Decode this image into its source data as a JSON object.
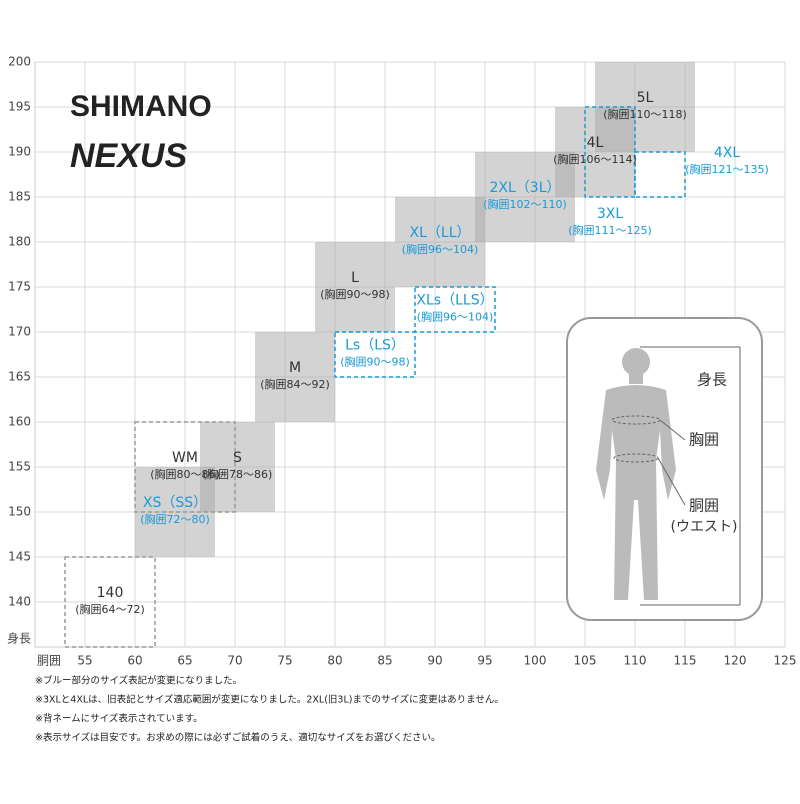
{
  "logos": [
    "SHIMANO",
    "NEXUS"
  ],
  "chart_data": {
    "type": "size-chart",
    "x_label": "胴囲",
    "y_label": "身長",
    "xlim": [
      50,
      125
    ],
    "ylim": [
      135,
      200
    ],
    "xticks": [
      55,
      60,
      65,
      70,
      75,
      80,
      85,
      90,
      95,
      100,
      105,
      110,
      115,
      120,
      125
    ],
    "yticks": [
      140,
      145,
      150,
      155,
      160,
      165,
      170,
      175,
      180,
      185,
      190,
      195,
      200
    ],
    "grid": true,
    "boxes": [
      {
        "label": "140",
        "sublabel": "(胸囲64～72)",
        "x": [
          53,
          62
        ],
        "y": [
          135,
          145
        ],
        "style": "dashed",
        "color": "#333333"
      },
      {
        "label": "XS（SS）",
        "sublabel": "(胸囲72～80)",
        "x": [
          60,
          68
        ],
        "y": [
          145,
          155
        ],
        "style": "filled",
        "color": "#1a9ad6"
      },
      {
        "label": "S",
        "sublabel": "(胸囲78～86)",
        "x": [
          66.5,
          74
        ],
        "y": [
          150,
          160
        ],
        "style": "filled",
        "color": "#333333"
      },
      {
        "label": "WM",
        "sublabel": "(胸囲80～86)",
        "x": [
          60,
          70
        ],
        "y": [
          150,
          160
        ],
        "style": "dashed",
        "color": "#333333"
      },
      {
        "label": "M",
        "sublabel": "(胸囲84～92)",
        "x": [
          72,
          80
        ],
        "y": [
          160,
          170
        ],
        "style": "filled",
        "color": "#333333"
      },
      {
        "label": "L",
        "sublabel": "(胸囲90～98)",
        "x": [
          78,
          86
        ],
        "y": [
          170,
          180
        ],
        "style": "filled",
        "color": "#333333"
      },
      {
        "label": "Ls（LS）",
        "sublabel": "(胸囲90～98)",
        "x": [
          80,
          88
        ],
        "y": [
          165,
          170
        ],
        "style": "dashed",
        "color": "#1a9ad6"
      },
      {
        "label": "XL（LL）",
        "sublabel": "(胸囲96～104)",
        "x": [
          86,
          95
        ],
        "y": [
          175,
          185
        ],
        "style": "filled",
        "color": "#1a9ad6"
      },
      {
        "label": "XLs（LLS）",
        "sublabel": "(胸囲96～104)",
        "x": [
          88,
          96
        ],
        "y": [
          170,
          175
        ],
        "style": "dashed",
        "color": "#1a9ad6"
      },
      {
        "label": "2XL（3L）",
        "sublabel": "(胸囲102～110)",
        "x": [
          94,
          104
        ],
        "y": [
          180,
          190
        ],
        "style": "filled",
        "color": "#1a9ad6"
      },
      {
        "label": "4L",
        "sublabel": "(胸囲106～114)",
        "x": [
          102,
          110
        ],
        "y": [
          185,
          195
        ],
        "style": "filled",
        "color": "#333333"
      },
      {
        "label": "5L",
        "sublabel": "(胸囲110～118)",
        "x": [
          106,
          116
        ],
        "y": [
          190,
          200
        ],
        "style": "filled",
        "color": "#333333"
      },
      {
        "label": "3XL",
        "sublabel": "(胸囲111～125)",
        "x": [
          105,
          110
        ],
        "y": [
          185,
          195
        ],
        "style": "dashed",
        "color": "#1a9ad6",
        "label_side": "below"
      },
      {
        "label": "4XL",
        "sublabel": "(胸囲121～135)",
        "x": [
          110,
          115
        ],
        "y": [
          185,
          190
        ],
        "style": "dashed",
        "color": "#1a9ad6",
        "label_side": "right"
      }
    ]
  },
  "figure_labels": [
    "身長",
    "胸囲",
    "胴囲",
    "(ウエスト)"
  ],
  "notes": [
    "※ブルー部分のサイズ表記が変更になりました。",
    "※3XLと4XLは、旧表記とサイズ適応範囲が変更になりました。2XL(旧3L)までのサイズに変更はありません。",
    "※背ネームにサイズ表示されています。",
    "※表示サイズは目安です。お求めの際には必ずご試着のうえ、適切なサイズをお選びください。"
  ]
}
